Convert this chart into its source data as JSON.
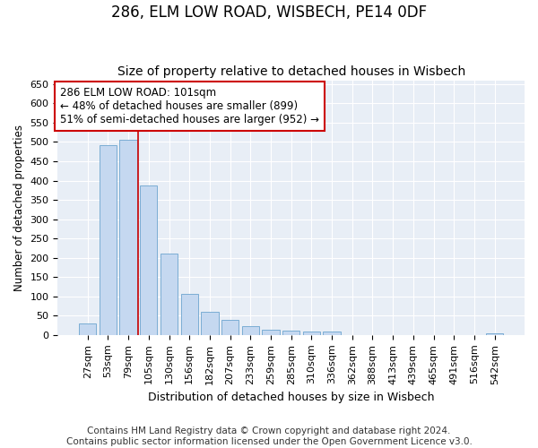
{
  "title": "286, ELM LOW ROAD, WISBECH, PE14 0DF",
  "subtitle": "Size of property relative to detached houses in Wisbech",
  "xlabel": "Distribution of detached houses by size in Wisbech",
  "ylabel": "Number of detached properties",
  "categories": [
    "27sqm",
    "53sqm",
    "79sqm",
    "105sqm",
    "130sqm",
    "156sqm",
    "182sqm",
    "207sqm",
    "233sqm",
    "259sqm",
    "285sqm",
    "310sqm",
    "336sqm",
    "362sqm",
    "388sqm",
    "413sqm",
    "439sqm",
    "465sqm",
    "491sqm",
    "516sqm",
    "542sqm"
  ],
  "values": [
    30,
    492,
    505,
    388,
    210,
    107,
    60,
    40,
    22,
    14,
    12,
    10,
    8,
    0,
    0,
    0,
    0,
    0,
    0,
    0,
    4
  ],
  "bar_color": "#c5d8f0",
  "bar_edge_color": "#7badd4",
  "vline_x_idx": 3,
  "vline_color": "#cc0000",
  "annotation_text": "286 ELM LOW ROAD: 101sqm\n← 48% of detached houses are smaller (899)\n51% of semi-detached houses are larger (952) →",
  "annotation_box_facecolor": "#ffffff",
  "annotation_box_edgecolor": "#cc0000",
  "ylim": [
    0,
    660
  ],
  "yticks": [
    0,
    50,
    100,
    150,
    200,
    250,
    300,
    350,
    400,
    450,
    500,
    550,
    600,
    650
  ],
  "bg_color": "#e8eef6",
  "grid_color": "#ffffff",
  "footer_line1": "Contains HM Land Registry data © Crown copyright and database right 2024.",
  "footer_line2": "Contains public sector information licensed under the Open Government Licence v3.0.",
  "title_fontsize": 12,
  "subtitle_fontsize": 10,
  "xlabel_fontsize": 9,
  "ylabel_fontsize": 8.5,
  "tick_fontsize": 8,
  "annot_fontsize": 8.5,
  "footer_fontsize": 7.5
}
